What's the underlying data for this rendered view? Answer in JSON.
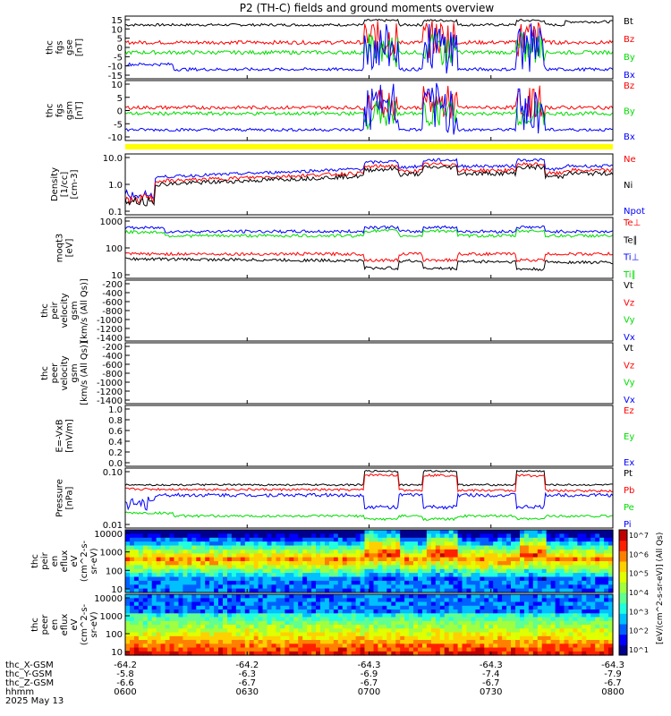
{
  "title": "P2 (TH-C) fields and ground moments overview",
  "colors": {
    "black": "#000000",
    "red": "#ff0000",
    "green": "#00dd00",
    "blue": "#0000ff",
    "yellow": "#ffff00"
  },
  "x_ticks": [
    "0600",
    "0630",
    "0700",
    "0730",
    "0800"
  ],
  "footer": {
    "rows": [
      {
        "label": "thc_X-GSM",
        "values": [
          "-64.2",
          "-64.2",
          "-64.3",
          "-64.3",
          "-64.3"
        ]
      },
      {
        "label": "thc_Y-GSM",
        "values": [
          "-5.8",
          "-6.3",
          "-6.9",
          "-7.4",
          "-7.9"
        ]
      },
      {
        "label": "thc_Z-GSM",
        "values": [
          "-6.6",
          "-6.7",
          "-6.7",
          "-6.7",
          "-6.7"
        ]
      },
      {
        "label": "hhmm",
        "values": [
          "0600",
          "0630",
          "0700",
          "0730",
          "0800"
        ]
      }
    ],
    "date": "2025 May 13"
  },
  "chart_data": [
    {
      "id": "fgs_gse",
      "type": "line",
      "ylabel": [
        "thc",
        "fgs",
        "gse",
        "[nT]"
      ],
      "yticks": [
        "15",
        "10",
        "5",
        "0",
        "-5",
        "-10",
        "-15"
      ],
      "legend": [
        {
          "name": "Bt",
          "color": "black"
        },
        {
          "name": "Bz",
          "color": "red"
        },
        {
          "name": "By",
          "color": "green"
        },
        {
          "name": "Bx",
          "color": "blue"
        }
      ]
    },
    {
      "id": "fgs_gsm",
      "type": "line",
      "ylabel": [
        "thc",
        "fgs",
        "gsm",
        "[nT]"
      ],
      "yticks": [
        "10",
        "5",
        "0",
        "-5",
        "-10"
      ],
      "legend": [
        {
          "name": "Bz",
          "color": "red"
        },
        {
          "name": "By",
          "color": "green"
        },
        {
          "name": "Bx",
          "color": "blue"
        }
      ]
    },
    {
      "id": "density",
      "type": "line",
      "scale": "log",
      "ylabel": [
        "Density",
        "[1/cc]",
        "[cm-3]"
      ],
      "yticks": [
        "10.0",
        "1.0",
        "0.1"
      ],
      "legend": [
        {
          "name": "Ne",
          "color": "red"
        },
        {
          "name": "Ni",
          "color": "black"
        },
        {
          "name": "Npot",
          "color": "blue"
        }
      ]
    },
    {
      "id": "temp",
      "type": "line",
      "scale": "log",
      "ylabel": [
        "moqt3",
        "[eV]"
      ],
      "yticks": [
        "1000",
        "100",
        "10"
      ],
      "legend": [
        {
          "name": "Te⊥",
          "color": "red"
        },
        {
          "name": "Te∥",
          "color": "black"
        },
        {
          "name": "Ti⊥",
          "color": "blue"
        },
        {
          "name": "Ti∥",
          "color": "green"
        }
      ]
    },
    {
      "id": "vel_i",
      "type": "line",
      "ylabel": [
        "thc",
        "peir",
        "velocity",
        "gsm",
        "[km/s (All Qs)]"
      ],
      "yticks": [
        "-200",
        "-400",
        "-600",
        "-800",
        "-1000",
        "-1200",
        "-1400"
      ],
      "legend": [
        {
          "name": "Vt",
          "color": "black"
        },
        {
          "name": "Vz",
          "color": "red"
        },
        {
          "name": "Vy",
          "color": "green"
        },
        {
          "name": "Vx",
          "color": "blue"
        }
      ]
    },
    {
      "id": "vel_e",
      "type": "line",
      "ylabel": [
        "thc",
        "peer",
        "velocity",
        "gsm",
        "[km/s (All Qs)]"
      ],
      "yticks": [
        "-200",
        "-400",
        "-600",
        "-800",
        "-1000",
        "-1200",
        "-1400"
      ],
      "legend": [
        {
          "name": "Vt",
          "color": "black"
        },
        {
          "name": "Vz",
          "color": "red"
        },
        {
          "name": "Vy",
          "color": "green"
        },
        {
          "name": "Vx",
          "color": "blue"
        }
      ]
    },
    {
      "id": "efield",
      "type": "line",
      "ylabel": [
        "E=-VxB",
        "[mV/m]"
      ],
      "yticks": [
        "1.0",
        "0.8",
        "0.6",
        "0.4",
        "0.2",
        "0.0"
      ],
      "legend": [
        {
          "name": "Ez",
          "color": "red"
        },
        {
          "name": "Ey",
          "color": "green"
        },
        {
          "name": "Ex",
          "color": "blue"
        }
      ]
    },
    {
      "id": "pressure",
      "type": "line",
      "scale": "log",
      "ylabel": [
        "Pressure",
        "[nPa]"
      ],
      "yticks": [
        "0.10",
        "0.01"
      ],
      "legend": [
        {
          "name": "Pt",
          "color": "black"
        },
        {
          "name": "Pb",
          "color": "red"
        },
        {
          "name": "Pe",
          "color": "green"
        },
        {
          "name": "Pi",
          "color": "blue"
        }
      ]
    },
    {
      "id": "ion_spec",
      "type": "heatmap",
      "ylabel": [
        "thc",
        "peir",
        "en",
        "eflux",
        "eV",
        "(cm^2-s-",
        "sr-eV)"
      ],
      "yticks": [
        "10000",
        "1000",
        "100",
        "10"
      ]
    },
    {
      "id": "elec_spec",
      "type": "heatmap",
      "ylabel": [
        "thc",
        "peer",
        "en",
        "eflux",
        "eV",
        "(cm^2-s-",
        "sr-eV)"
      ],
      "yticks": [
        "10000",
        "1000",
        "100",
        "10"
      ]
    }
  ],
  "colorbar": {
    "label": "[eV/(cm^2-s-sr-eV)] (All Qs)",
    "ticks": [
      "10^7",
      "10^6",
      "10^5",
      "10^4",
      "10^3",
      "10^2",
      "10^1"
    ]
  }
}
